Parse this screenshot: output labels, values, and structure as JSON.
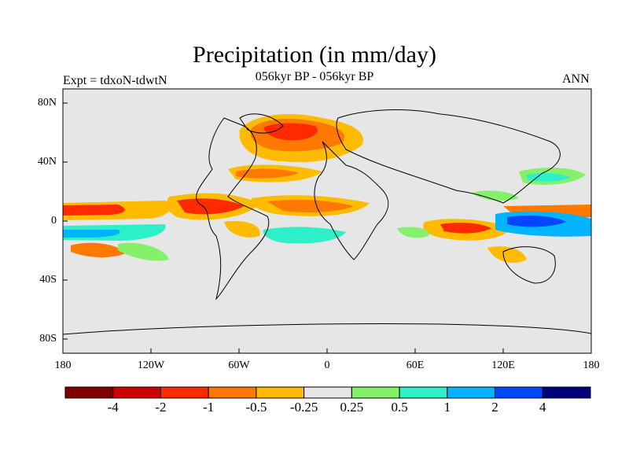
{
  "title": "Precipitation (in mm/day)",
  "subtitle": "056kyr BP - 056kyr BP",
  "experiment_label": "Expt = tdxoN-tdwtN",
  "season_label": "ANN",
  "map": {
    "background_color": "#e6e6e6",
    "lat_ticks": [
      "80N",
      "40N",
      "0",
      "40S",
      "80S"
    ],
    "lon_ticks": [
      "180",
      "120W",
      "60W",
      "0",
      "60E",
      "120E",
      "180"
    ]
  },
  "colorbar": {
    "colors": [
      "#800000",
      "#cc0000",
      "#ff2a00",
      "#ff7800",
      "#ffbb00",
      "#e6e6e6",
      "#85f06a",
      "#2ef0c8",
      "#00b4ff",
      "#0047ff",
      "#00007a"
    ],
    "labels": [
      "-4",
      "-2",
      "-1",
      "-0.5",
      "-0.25",
      "0.25",
      "0.5",
      "1",
      "2",
      "4"
    ]
  }
}
